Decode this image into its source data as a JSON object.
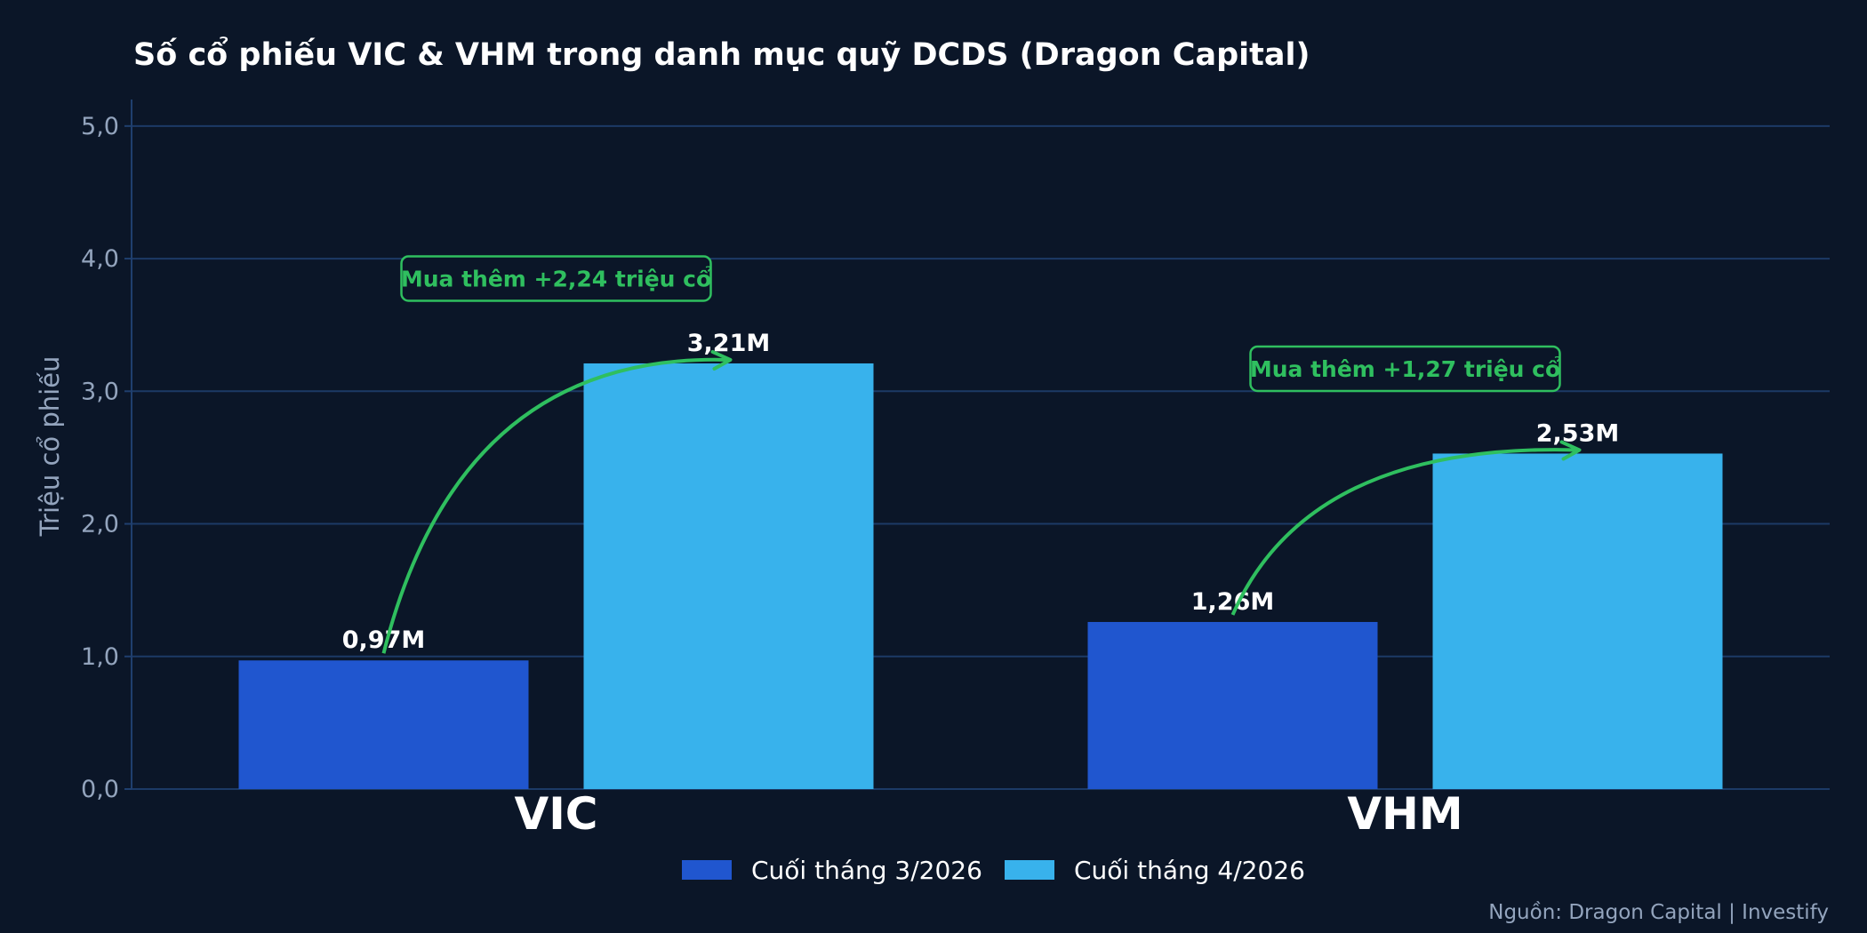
{
  "chart_data": {
    "type": "bar",
    "title": "Số cổ phiếu VIC & VHM trong danh mục quỹ DCDS (Dragon Capital)",
    "ylabel": "Triệu cổ phiếu",
    "xlabel": "",
    "ylim": [
      0,
      5.2
    ],
    "yticks": [
      "0,0",
      "1,0",
      "2,0",
      "3,0",
      "4,0",
      "5,0"
    ],
    "ytick_values": [
      0,
      1,
      2,
      3,
      4,
      5
    ],
    "grid": true,
    "categories": [
      "VIC",
      "VHM"
    ],
    "series": [
      {
        "name": "Cuối tháng 3/2026",
        "values": [
          0.97,
          1.26
        ],
        "labels": [
          "0,97M",
          "1,26M"
        ],
        "color": "#2056cf"
      },
      {
        "name": "Cuối tháng 4/2026",
        "values": [
          3.21,
          2.53
        ],
        "labels": [
          "3,21M",
          "2,53M"
        ],
        "color": "#38b2ec"
      }
    ],
    "annotations": [
      {
        "category": "VIC",
        "text": "Mua thêm +2,24 triệu cổ",
        "y": 3.85
      },
      {
        "category": "VHM",
        "text": "Mua thêm +1,27 triệu cổ",
        "y": 3.17
      }
    ],
    "legend_position": "bottom-center",
    "source": "Nguồn: Dragon Capital | Investify",
    "colors": {
      "background": "#0b1628",
      "grid": "#1c3a66",
      "accent": "#2fbf5f"
    }
  }
}
